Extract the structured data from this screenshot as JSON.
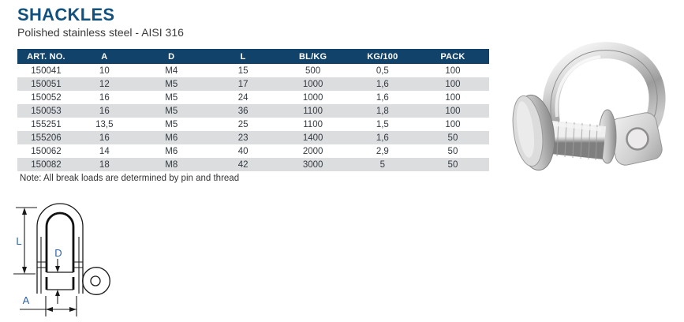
{
  "header": {
    "title": "SHACKLES",
    "subtitle": "Polished stainless steel - AISI 316"
  },
  "table": {
    "columns": [
      "ART. NO.",
      "A",
      "D",
      "L",
      "BL/KG",
      "KG/100",
      "PACK"
    ],
    "rows": [
      [
        "150041",
        "10",
        "M4",
        "15",
        "500",
        "0,5",
        "100"
      ],
      [
        "150051",
        "12",
        "M5",
        "17",
        "1000",
        "1,6",
        "100"
      ],
      [
        "150052",
        "16",
        "M5",
        "24",
        "1000",
        "1,6",
        "100"
      ],
      [
        "150053",
        "16",
        "M5",
        "36",
        "1100",
        "1,8",
        "100"
      ],
      [
        "155251",
        "13,5",
        "M5",
        "25",
        "1100",
        "1,5",
        "100"
      ],
      [
        "155206",
        "16",
        "M6",
        "23",
        "1400",
        "1,6",
        "50"
      ],
      [
        "150062",
        "14",
        "M6",
        "40",
        "2000",
        "2,9",
        "50"
      ],
      [
        "150082",
        "18",
        "M8",
        "42",
        "3000",
        "5",
        "50"
      ]
    ]
  },
  "note": "Note: All break loads are determined by pin and thread",
  "diagram": {
    "label_l": "L",
    "label_d": "D",
    "label_a": "A"
  },
  "image": {
    "name": "stainless-steel-shackle-photo"
  },
  "colors": {
    "title_blue": "#11517f",
    "table_header_bg": "#114269",
    "table_row_alt": "#dcdddf",
    "dimension_label_blue": "#2b62a8"
  }
}
